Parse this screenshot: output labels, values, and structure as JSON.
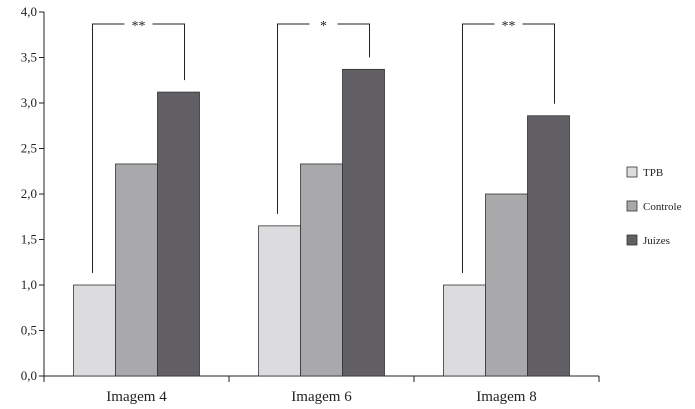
{
  "chart_data": {
    "type": "bar",
    "title": "",
    "xlabel": "",
    "ylabel": "",
    "ylim": [
      0,
      4
    ],
    "yticks": [
      0,
      0.5,
      1,
      1.5,
      2,
      2.5,
      3,
      3.5,
      4
    ],
    "ytick_labels": [
      "0,0",
      "0,5",
      "1,0",
      "1,5",
      "2,0",
      "2,5",
      "3,0",
      "3,5",
      "4,0"
    ],
    "categories": [
      "Imagem 4",
      "Imagem 6",
      "Imagem 8"
    ],
    "series": [
      {
        "name": "TPB",
        "color": "#dcdcdf",
        "values": [
          1.0,
          1.65,
          1.0
        ]
      },
      {
        "name": "Controle",
        "color": "#a9a9ac",
        "values": [
          2.33,
          2.33,
          2.0
        ]
      },
      {
        "name": "Juízes",
        "color": "#626065",
        "values": [
          3.12,
          3.37,
          2.86
        ]
      }
    ],
    "significance": [
      {
        "category": "Imagem 4",
        "label": "**"
      },
      {
        "category": "Imagem 6",
        "label": "*"
      },
      {
        "category": "Imagem 8",
        "label": "**"
      }
    ],
    "legend_position": "right",
    "grid": false
  }
}
